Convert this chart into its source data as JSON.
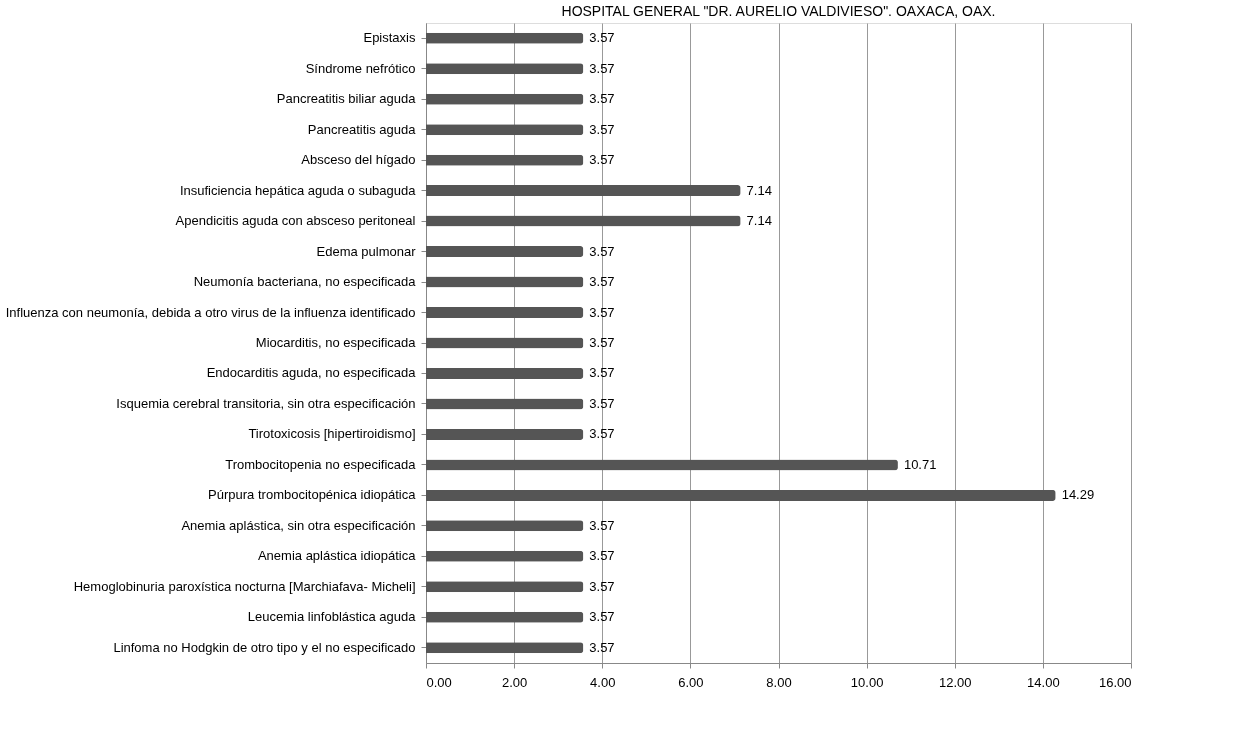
{
  "chart_data": {
    "type": "bar",
    "orientation": "horizontal",
    "title": "HOSPITAL GENERAL \"DR. AURELIO VALDIVIESO\". OAXACA, OAX.",
    "categories": [
      "Epistaxis",
      "Síndrome nefrótico",
      "Pancreatitis biliar aguda",
      "Pancreatitis aguda",
      "Absceso del hígado",
      "Insuficiencia hepática aguda o subaguda",
      "Apendicitis aguda con absceso peritoneal",
      "Edema pulmonar",
      "Neumonía bacteriana, no especificada",
      "Influenza con neumonía, debida a otro virus de la influenza identificado",
      "Miocarditis, no especificada",
      "Endocarditis aguda, no especificada",
      "Isquemia cerebral transitoria, sin otra especificación",
      "Tirotoxicosis [hipertiroidismo]",
      "Trombocitopenia no especificada",
      "Púrpura trombocitopénica idiopática",
      "Anemia aplástica, sin otra especificación",
      "Anemia aplástica idiopática",
      "Hemoglobinuria paroxística nocturna  [Marchiafava- Micheli]",
      "Leucemia linfoblástica aguda",
      "Linfoma no Hodgkin de otro tipo y el no especificado"
    ],
    "values": [
      3.57,
      3.57,
      3.57,
      3.57,
      3.57,
      7.14,
      7.14,
      3.57,
      3.57,
      3.57,
      3.57,
      3.57,
      3.57,
      3.57,
      10.71,
      14.29,
      3.57,
      3.57,
      3.57,
      3.57,
      3.57
    ],
    "color": "#555555",
    "xlim": [
      0,
      16
    ],
    "xticks": [
      {
        "value": 0,
        "label": "0.00"
      },
      {
        "value": 2,
        "label": "2.00"
      },
      {
        "value": 4,
        "label": "4.00"
      },
      {
        "value": 6,
        "label": "6.00"
      },
      {
        "value": 8,
        "label": "8.00"
      },
      {
        "value": 10,
        "label": "10.00"
      },
      {
        "value": 12,
        "label": "12.00"
      },
      {
        "value": 14,
        "label": "14.00"
      },
      {
        "value": 16,
        "label": "16.00"
      }
    ],
    "grid": "x",
    "data_labels": true
  }
}
